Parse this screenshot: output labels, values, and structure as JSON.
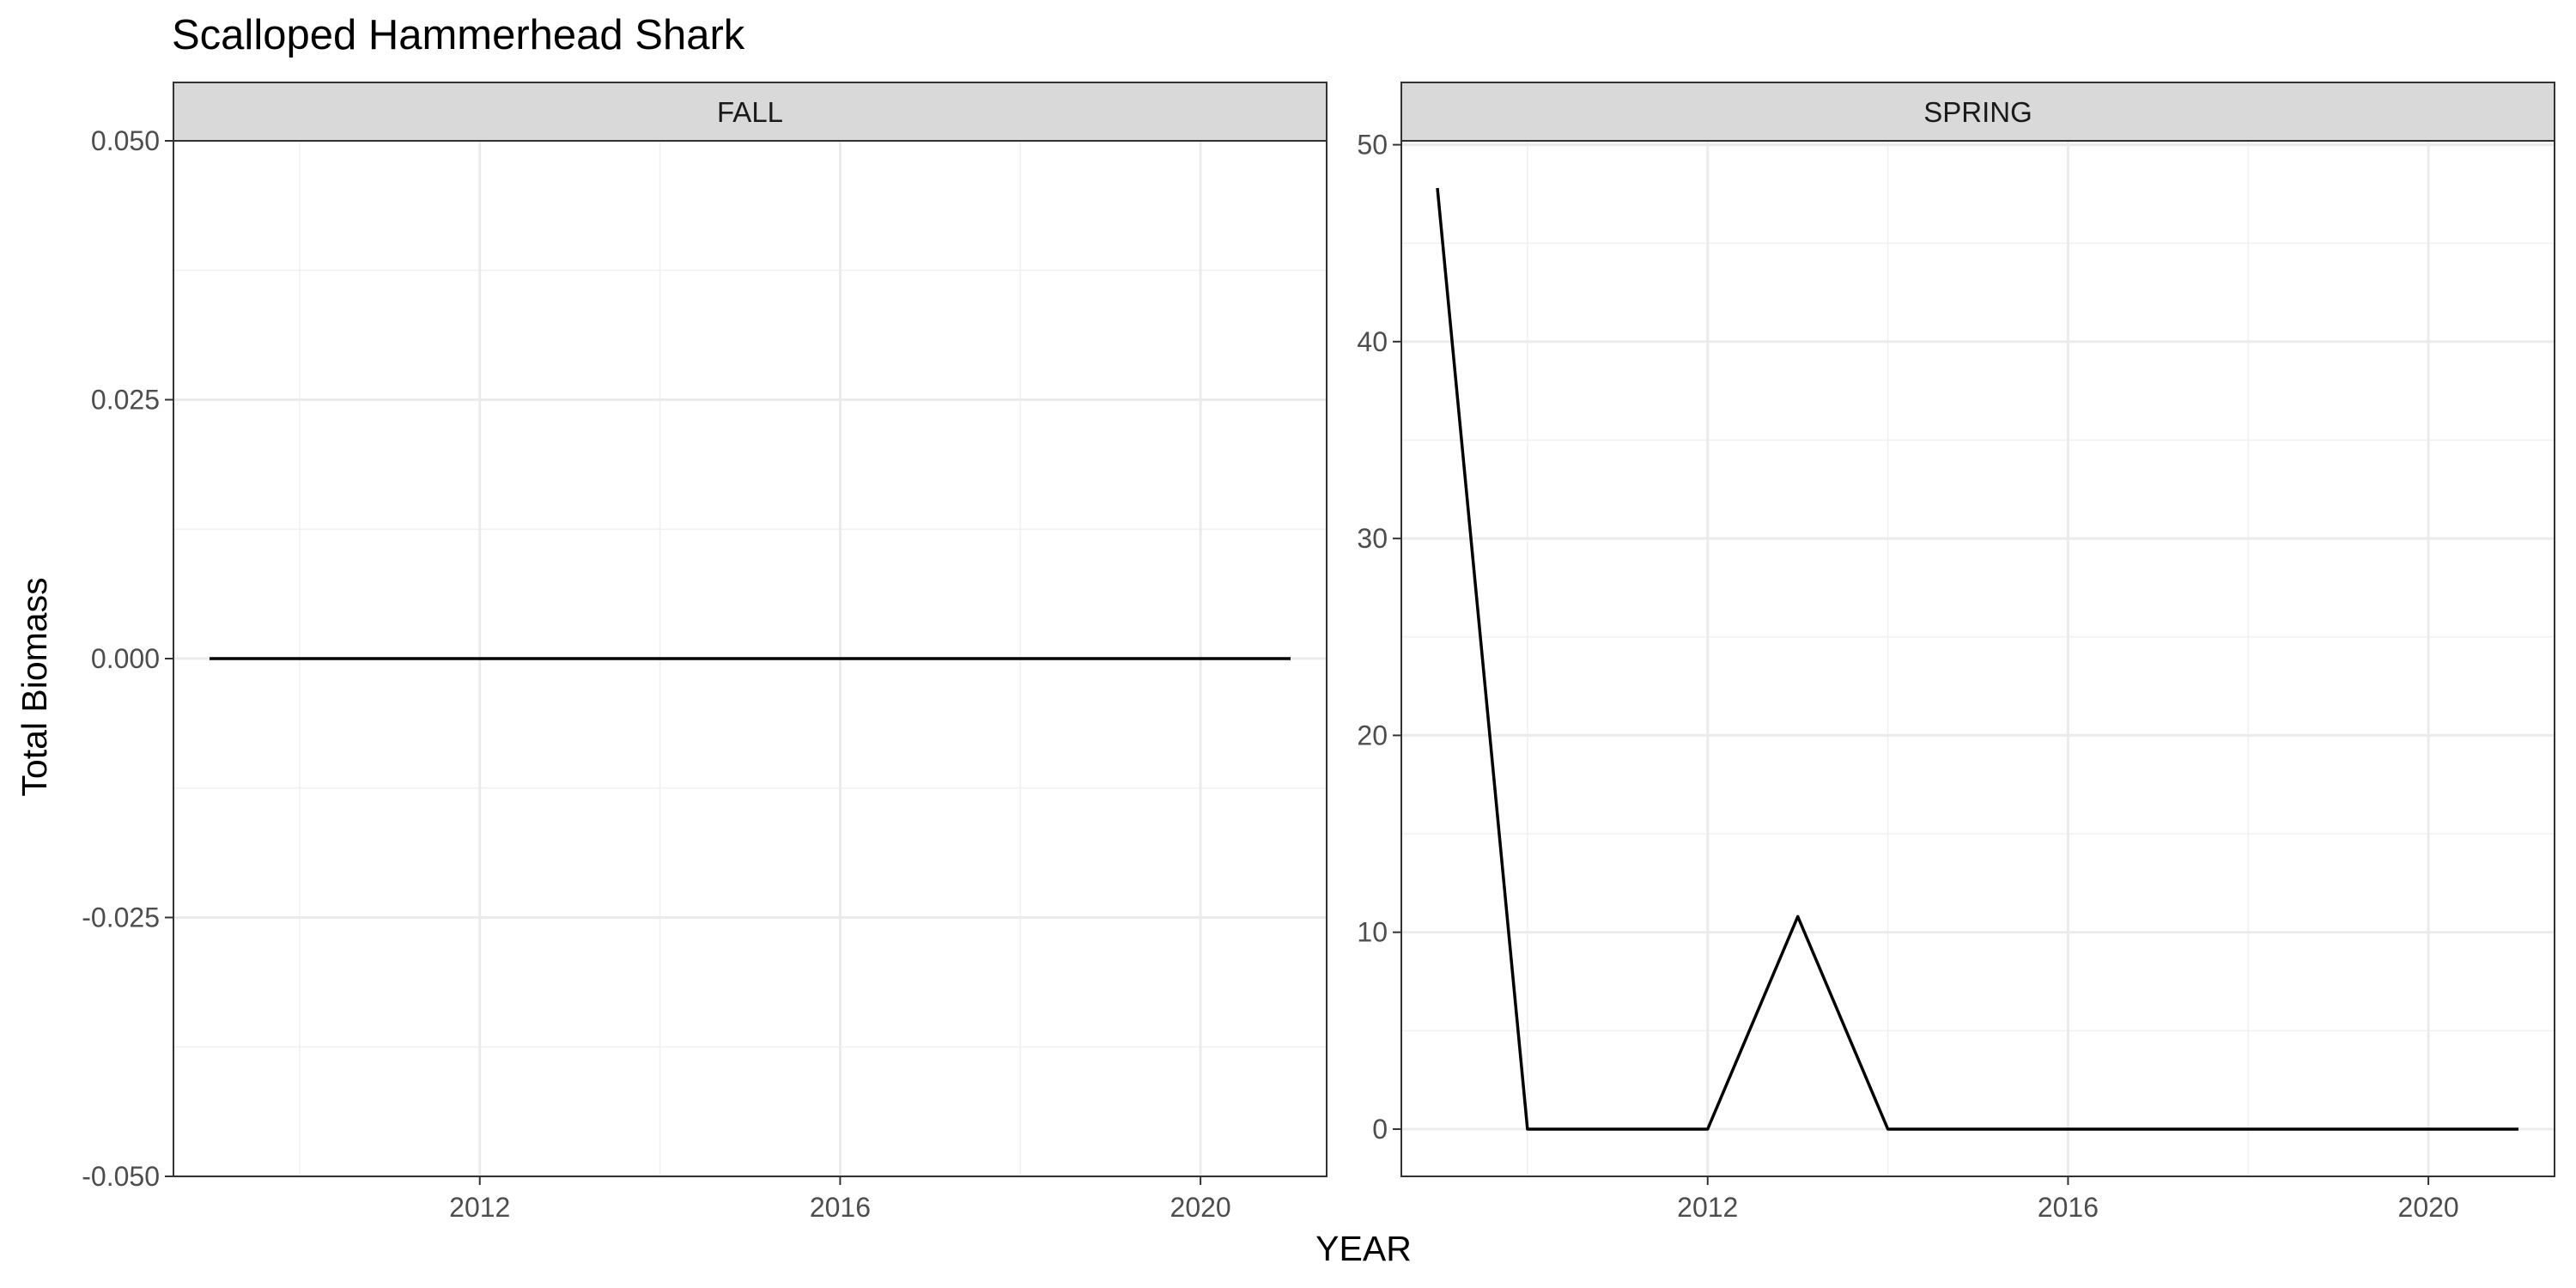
{
  "chart_data": {
    "type": "line",
    "title": "Scalloped Hammerhead Shark",
    "xlabel": "YEAR",
    "ylabel": "Total Biomass",
    "grid": true,
    "legend": "none",
    "line_color": "#000000",
    "panels": [
      {
        "label": "FALL",
        "xlim": [
          2008.6,
          2021.4
        ],
        "ylim": [
          -0.05,
          0.05
        ],
        "x_ticks": [
          2012,
          2016,
          2020
        ],
        "y_ticks": [
          -0.05,
          -0.025,
          0,
          0.025,
          0.05
        ],
        "y_tick_labels": [
          "-0.050",
          "-0.025",
          "0.000",
          "0.025",
          "0.050"
        ],
        "series": [
          {
            "x": [
              2009,
              2010,
              2011,
              2012,
              2013,
              2014,
              2015,
              2016,
              2017,
              2018,
              2019,
              2020,
              2021
            ],
            "y": [
              0,
              0,
              0,
              0,
              0,
              0,
              0,
              0,
              0,
              0,
              0,
              0,
              0
            ]
          }
        ]
      },
      {
        "label": "SPRING",
        "xlim": [
          2008.6,
          2021.4
        ],
        "ylim": [
          -2.4,
          50.2
        ],
        "x_ticks": [
          2012,
          2016,
          2020
        ],
        "y_ticks": [
          0,
          10,
          20,
          30,
          40,
          50
        ],
        "y_tick_labels": [
          "0",
          "10",
          "20",
          "30",
          "40",
          "50"
        ],
        "series": [
          {
            "x": [
              2009,
              2010,
              2011,
              2012,
              2013,
              2014,
              2015,
              2016,
              2017,
              2018,
              2019,
              2020,
              2021
            ],
            "y": [
              47.8,
              0,
              0,
              0,
              10.8,
              0,
              0,
              0,
              0,
              0,
              0,
              0,
              0
            ]
          }
        ]
      }
    ]
  }
}
